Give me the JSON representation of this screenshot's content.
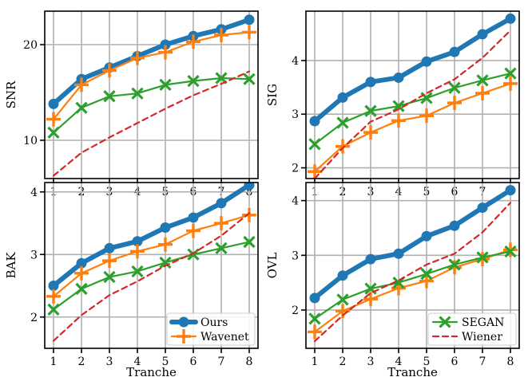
{
  "colors": {
    "Ours": "#1f77b4",
    "Wavenet": "#ff7f0e",
    "SEGAN": "#2ca02c",
    "Wiener": "#d62728",
    "grid": "#b0b0b0"
  },
  "chart_data": [
    {
      "type": "line",
      "panel": "top-left",
      "xlabel": "",
      "ylabel": "SNR",
      "x": [
        1,
        2,
        3,
        4,
        5,
        6,
        7,
        8
      ],
      "xticks": [
        "1",
        "2",
        "3",
        "4",
        "5",
        "6",
        "7",
        "8"
      ],
      "ylim": [
        6,
        23.5
      ],
      "yticks": [
        10,
        20
      ],
      "ytick_labels": [
        "10",
        "20"
      ],
      "legend": [],
      "series": [
        {
          "name": "Ours",
          "marker": "circle",
          "values": [
            13.8,
            16.4,
            17.6,
            18.8,
            20.0,
            20.9,
            21.6,
            22.6
          ]
        },
        {
          "name": "Wavenet",
          "marker": "plus",
          "values": [
            12.2,
            15.8,
            17.3,
            18.6,
            19.2,
            20.3,
            21.0,
            21.3
          ]
        },
        {
          "name": "SEGAN",
          "marker": "x",
          "values": [
            10.8,
            13.4,
            14.6,
            14.9,
            15.8,
            16.2,
            16.5,
            16.4
          ]
        },
        {
          "name": "Wiener",
          "marker": "none",
          "values": [
            6.3,
            8.7,
            10.3,
            11.8,
            13.3,
            14.7,
            15.9,
            17.2
          ]
        }
      ]
    },
    {
      "type": "line",
      "panel": "top-right",
      "xlabel": "",
      "ylabel": "SIG",
      "x": [
        1,
        2,
        3,
        4,
        5,
        6,
        7,
        8
      ],
      "xticks": [
        "1",
        "2",
        "3",
        "4",
        "5",
        "6",
        "7",
        "8"
      ],
      "ylim": [
        1.8,
        4.92
      ],
      "yticks": [
        2,
        3,
        4
      ],
      "ytick_labels": [
        "2",
        "3",
        "4"
      ],
      "legend": [],
      "series": [
        {
          "name": "Ours",
          "marker": "circle",
          "values": [
            2.87,
            3.31,
            3.6,
            3.68,
            3.98,
            4.16,
            4.49,
            4.78
          ]
        },
        {
          "name": "Wavenet",
          "marker": "plus",
          "values": [
            1.93,
            2.4,
            2.66,
            2.88,
            2.97,
            3.21,
            3.39,
            3.57
          ]
        },
        {
          "name": "SEGAN",
          "marker": "x",
          "values": [
            2.44,
            2.84,
            3.06,
            3.15,
            3.3,
            3.49,
            3.63,
            3.76
          ]
        },
        {
          "name": "Wiener",
          "marker": "none",
          "values": [
            1.8,
            2.37,
            2.86,
            3.09,
            3.39,
            3.65,
            4.05,
            4.56
          ]
        }
      ]
    },
    {
      "type": "line",
      "panel": "bottom-left",
      "xlabel": "Tranche",
      "ylabel": "BAK",
      "x": [
        1,
        2,
        3,
        4,
        5,
        6,
        7,
        8
      ],
      "xticks": [
        "1",
        "2",
        "3",
        "4",
        "5",
        "6",
        "7",
        "8"
      ],
      "ylim": [
        1.5,
        4.15
      ],
      "yticks": [
        2,
        3,
        4
      ],
      "ytick_labels": [
        "2",
        "3",
        "4"
      ],
      "legend": [
        {
          "series": "Ours",
          "label": "Ours"
        },
        {
          "series": "Wavenet",
          "label": "Wavenet"
        }
      ],
      "legend_placement": "lower-right",
      "series": [
        {
          "name": "Ours",
          "marker": "circle",
          "values": [
            2.5,
            2.86,
            3.1,
            3.21,
            3.43,
            3.59,
            3.82,
            4.11
          ]
        },
        {
          "name": "Wavenet",
          "marker": "plus",
          "values": [
            2.33,
            2.7,
            2.9,
            3.05,
            3.16,
            3.38,
            3.5,
            3.63
          ]
        },
        {
          "name": "SEGAN",
          "marker": "x",
          "values": [
            2.12,
            2.45,
            2.64,
            2.73,
            2.87,
            3.0,
            3.1,
            3.2
          ]
        },
        {
          "name": "Wiener",
          "marker": "none",
          "values": [
            1.62,
            2.03,
            2.35,
            2.57,
            2.82,
            3.02,
            3.3,
            3.66
          ]
        }
      ]
    },
    {
      "type": "line",
      "panel": "bottom-right",
      "xlabel": "Tranche",
      "ylabel": "OVL",
      "x": [
        1,
        2,
        3,
        4,
        5,
        6,
        7,
        8
      ],
      "xticks": [
        "1",
        "2",
        "3",
        "4",
        "5",
        "6",
        "7",
        "8"
      ],
      "ylim": [
        1.3,
        4.33
      ],
      "yticks": [
        2,
        3,
        4
      ],
      "ytick_labels": [
        "2",
        "3",
        "4"
      ],
      "legend": [
        {
          "series": "SEGAN",
          "label": "SEGAN"
        },
        {
          "series": "Wiener",
          "label": "Wiener"
        }
      ],
      "legend_placement": "lower-right",
      "series": [
        {
          "name": "Ours",
          "marker": "circle",
          "values": [
            2.22,
            2.63,
            2.93,
            3.03,
            3.35,
            3.54,
            3.87,
            4.19
          ]
        },
        {
          "name": "Wavenet",
          "marker": "plus",
          "values": [
            1.6,
            1.98,
            2.2,
            2.4,
            2.53,
            2.78,
            2.93,
            3.1
          ]
        },
        {
          "name": "SEGAN",
          "marker": "x",
          "values": [
            1.84,
            2.19,
            2.39,
            2.5,
            2.66,
            2.83,
            2.96,
            3.07
          ]
        },
        {
          "name": "Wiener",
          "marker": "none",
          "values": [
            1.43,
            1.9,
            2.31,
            2.54,
            2.83,
            3.03,
            3.42,
            3.96
          ]
        }
      ]
    }
  ]
}
